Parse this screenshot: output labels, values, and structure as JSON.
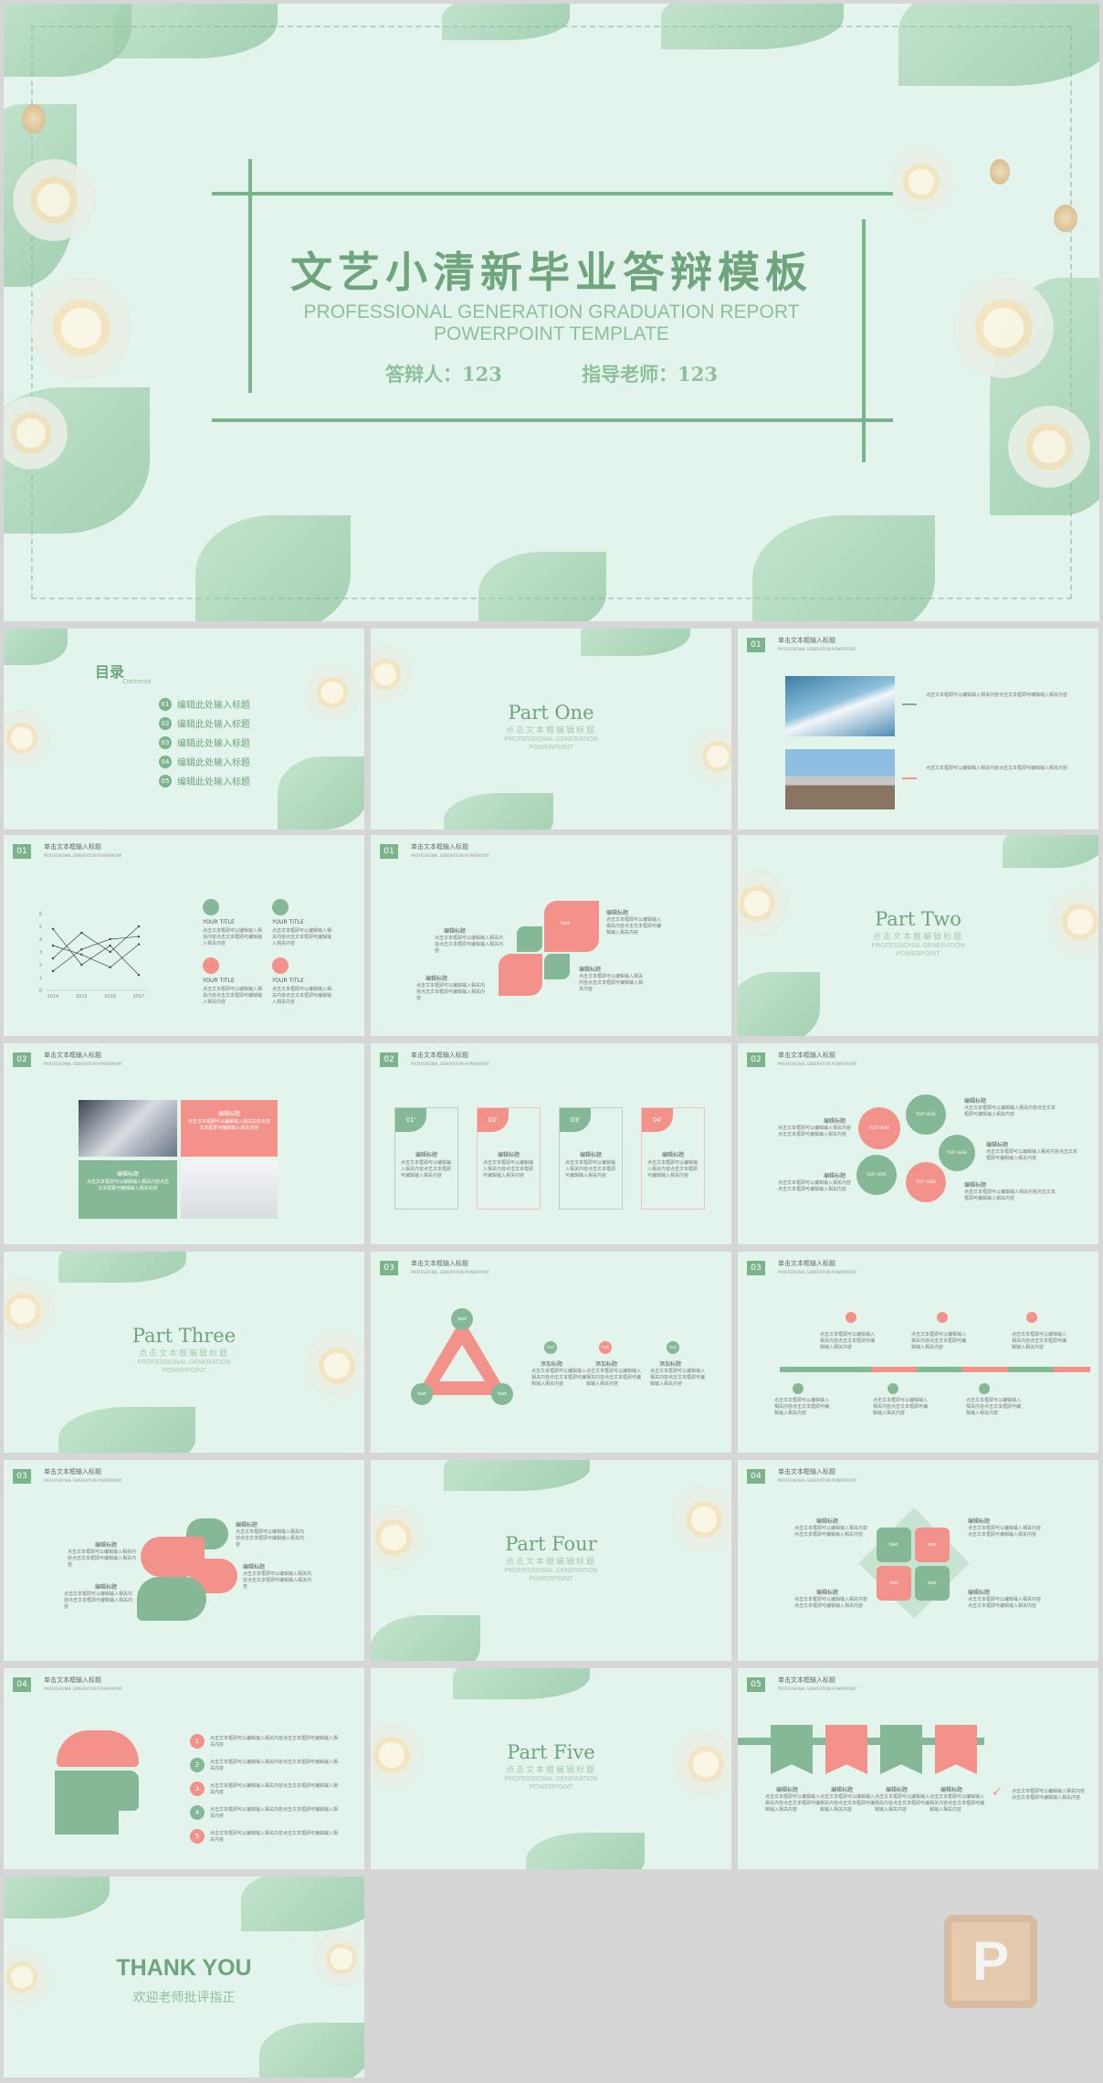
{
  "hero": {
    "title_cn": "文艺小清新毕业答辩模板",
    "title_en_1": "PROFESSIONAL GENERATION GRADUATION REPORT",
    "title_en_2": "POWERPOINT TEMPLATE",
    "presenter": "答辩人：123",
    "advisor": "指导老师：123"
  },
  "common": {
    "header_title": "单击文本框输入标题",
    "header_sub": "PROFESSIONAL GENERATION POWERPOINT",
    "part_sub_cn": "点击文本框编辑标题",
    "part_sub_en_1": "PROFESSIONAL GENERATION",
    "part_sub_en_2": "POWERPOINT",
    "body_text": "点击文本框即可以编辑输入相关内容点击文本框即可编辑输入相关内容",
    "edit_title": "编辑标题",
    "add_title": "添加标题",
    "your_title": "YOUR TITLE",
    "text_label": "text",
    "text_here": "TEXT HERE"
  },
  "toc": {
    "title": "目录",
    "subtitle": "Contents",
    "items": [
      {
        "num": "01",
        "label": "编辑此处输入标题"
      },
      {
        "num": "02",
        "label": "编辑此处输入标题"
      },
      {
        "num": "03",
        "label": "编辑此处输入标题"
      },
      {
        "num": "04",
        "label": "编辑此处输入标题"
      },
      {
        "num": "05",
        "label": "编辑此处输入标题"
      }
    ]
  },
  "parts": {
    "one": "Part One",
    "two": "Part Two",
    "three": "Part Three",
    "four": "Part Four",
    "five": "Part Five"
  },
  "section_nums": {
    "s1": "01",
    "s2": "02",
    "s3": "03",
    "s4": "04",
    "s5": "05"
  },
  "cards": [
    "01'",
    "02'",
    "03'",
    "04'"
  ],
  "numbers": [
    "1",
    "2",
    "3",
    "4",
    "5"
  ],
  "thanks": {
    "title": "THANK YOU",
    "subtitle": "欢迎老师批评指正"
  },
  "chart_data": {
    "type": "line",
    "categories": [
      "2014",
      "2015",
      "2016",
      "2017"
    ],
    "ylim": [
      0,
      6
    ],
    "yticks": [
      "0",
      "1",
      "2",
      "3",
      "4",
      "5",
      "6"
    ],
    "series": [
      {
        "values": [
          2.5,
          4.5,
          3.0,
          5.0
        ]
      },
      {
        "values": [
          4.8,
          2.0,
          3.5,
          1.2
        ]
      },
      {
        "values": [
          1.5,
          3.2,
          4.0,
          4.2
        ]
      },
      {
        "values": [
          3.5,
          2.8,
          1.8,
          3.6
        ]
      }
    ],
    "legend": false,
    "grid": false
  },
  "watermark": {
    "letter": "P"
  }
}
